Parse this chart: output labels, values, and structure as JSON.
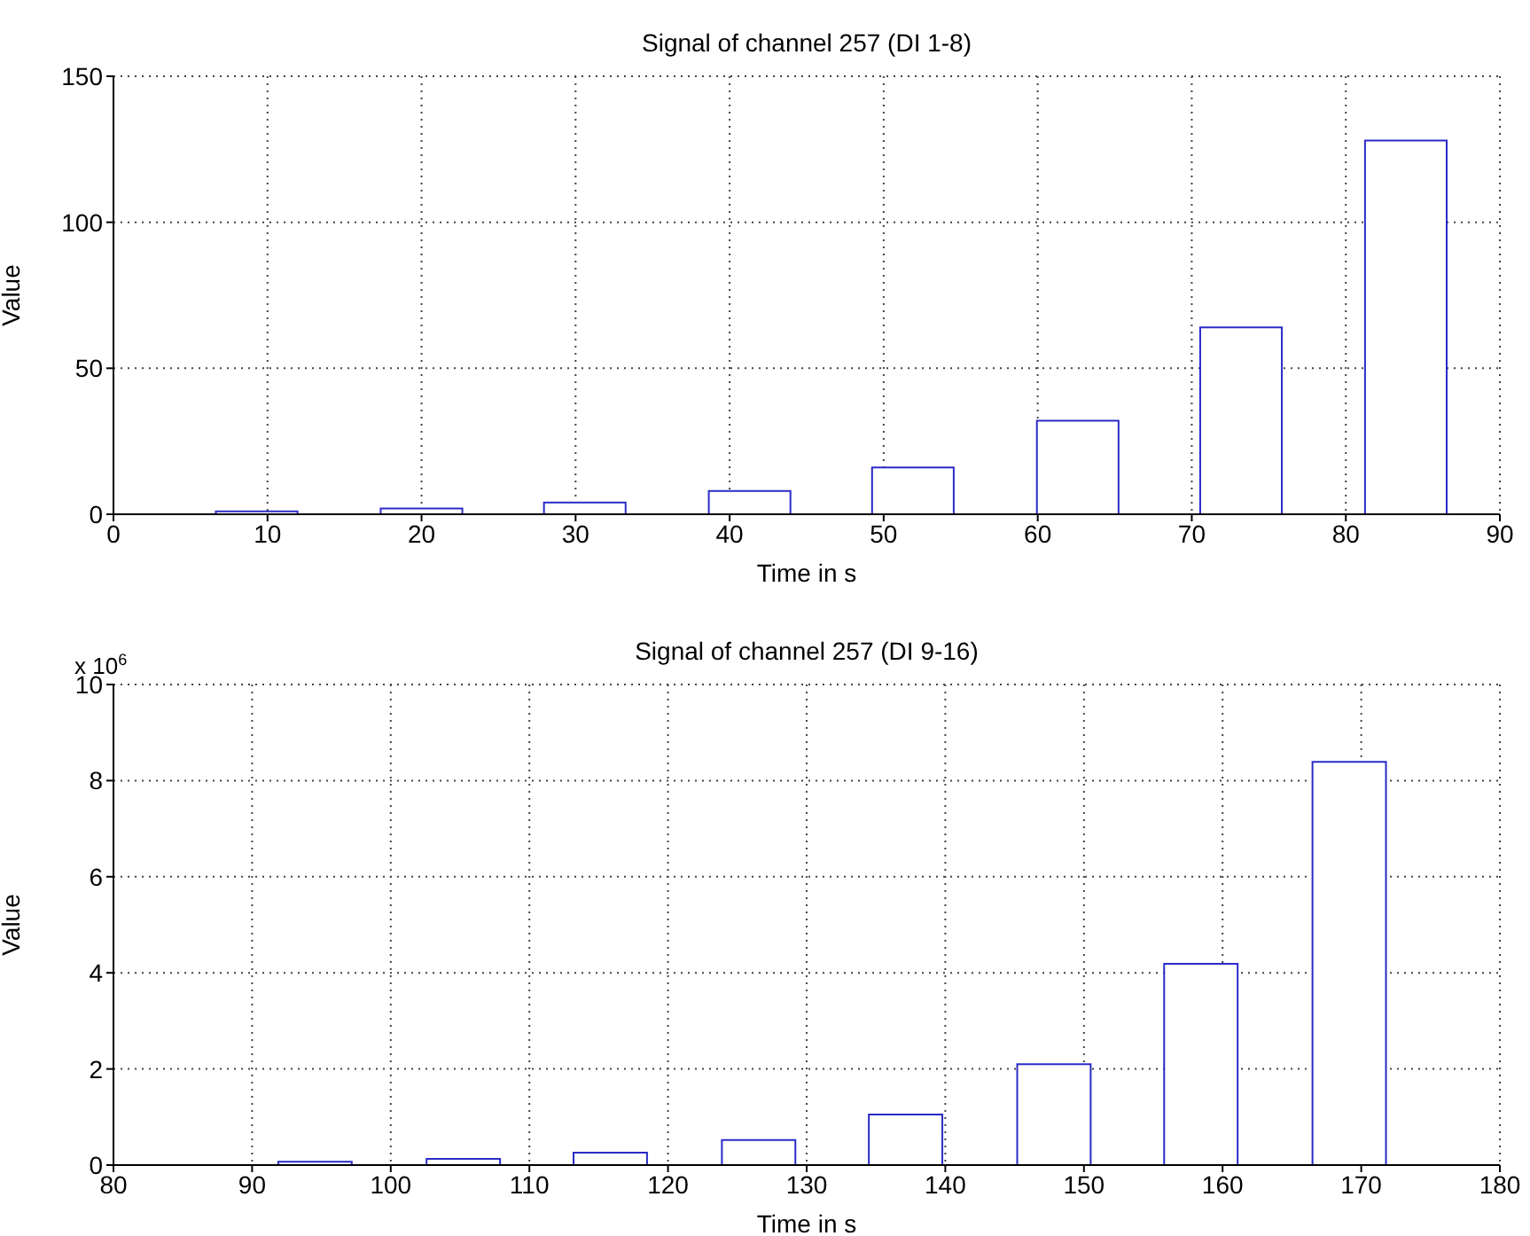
{
  "chart_data": [
    {
      "type": "bar",
      "title": "Signal of channel 257 (DI 1-8)",
      "xlabel": "Time in s",
      "ylabel": "Value",
      "x": [
        9.3,
        20.0,
        30.6,
        41.3,
        51.9,
        62.6,
        73.2,
        83.9
      ],
      "values": [
        1,
        2,
        4,
        8,
        16,
        32,
        64,
        128
      ],
      "color": "#2b2bc8",
      "xlim": [
        0,
        90
      ],
      "xticks": [
        0,
        10,
        20,
        30,
        40,
        50,
        60,
        70,
        80,
        90
      ],
      "ylim": [
        0,
        150
      ],
      "yticks": [
        0,
        50,
        100,
        150
      ],
      "grid": true
    },
    {
      "type": "bar",
      "title": "Signal of channel 257 (DI 9-16)",
      "xlabel": "Time in s",
      "ylabel": "Value",
      "annotations": [
        "x 10$^{6}$"
      ],
      "x": [
        94.5,
        105.2,
        115.8,
        126.5,
        137.1,
        147.8,
        158.4,
        169.1
      ],
      "values": [
        0.07,
        0.13,
        0.26,
        0.52,
        1.05,
        2.1,
        4.19,
        8.39
      ],
      "color": "#2b2bc8",
      "xlim": [
        80,
        180
      ],
      "xticks": [
        80,
        90,
        100,
        110,
        120,
        130,
        140,
        150,
        160,
        170,
        180
      ],
      "ylim": [
        0,
        10
      ],
      "yticks": [
        0,
        2,
        4,
        6,
        8,
        10
      ],
      "grid": true
    }
  ]
}
